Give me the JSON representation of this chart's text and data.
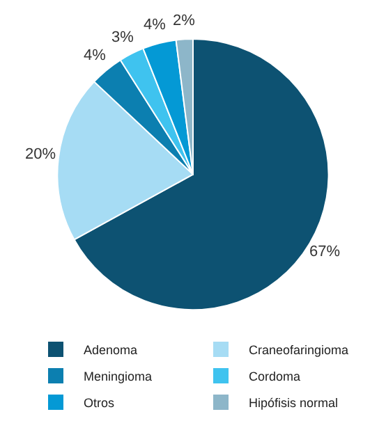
{
  "chart_data": {
    "type": "pie",
    "categories": [
      "Adenoma",
      "Craneofaringioma",
      "Meningioma",
      "Cordoma",
      "Otros",
      "Hipófisis normal"
    ],
    "values": [
      67,
      20,
      4,
      3,
      4,
      2
    ],
    "value_labels": [
      "67%",
      "20%",
      "4%",
      "3%",
      "4%",
      "2%"
    ],
    "colors": [
      "#0d5272",
      "#a6dcf4",
      "#0c7fb0",
      "#3fc3ef",
      "#0499d5",
      "#8db6c9"
    ],
    "legend": "bottom"
  }
}
